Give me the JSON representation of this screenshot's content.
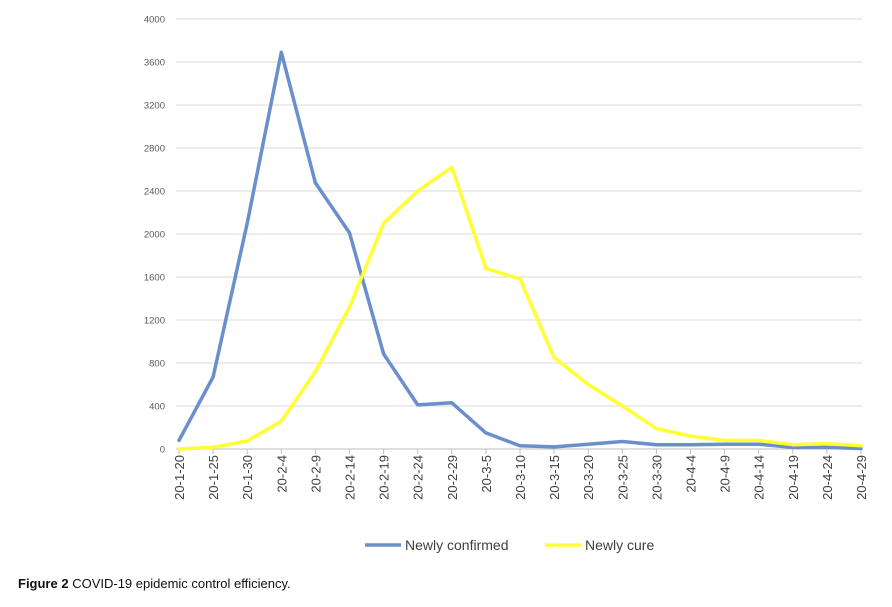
{
  "chart_data": {
    "type": "line",
    "title": "",
    "xlabel": "",
    "ylabel": "",
    "ylim": [
      0,
      4000
    ],
    "yticks": [
      0,
      400,
      800,
      1200,
      1600,
      2000,
      2400,
      2800,
      3200,
      3600,
      4000
    ],
    "grid": true,
    "legend_placement": "bottom",
    "categories": [
      "20-1-20",
      "20-1-25",
      "20-1-30",
      "20-2-4",
      "20-2-9",
      "20-2-14",
      "20-2-19",
      "20-2-24",
      "20-2-29",
      "20-3-5",
      "20-3-10",
      "20-3-15",
      "20-3-20",
      "20-3-25",
      "20-3-30",
      "20-4-4",
      "20-4-9",
      "20-4-14",
      "20-4-19",
      "20-4-24",
      "20-4-29"
    ],
    "series": [
      {
        "name": "Newly confirmed",
        "color": "#6a8fcc",
        "values": [
          80,
          670,
          2100,
          3690,
          2475,
          2010,
          885,
          410,
          430,
          150,
          30,
          20,
          45,
          70,
          40,
          40,
          45,
          45,
          15,
          15,
          5
        ]
      },
      {
        "name": "Newly cure",
        "color": "#ffff33",
        "values": [
          0,
          15,
          75,
          260,
          720,
          1320,
          2100,
          2400,
          2620,
          1680,
          1580,
          850,
          600,
          400,
          190,
          120,
          80,
          80,
          40,
          50,
          30
        ]
      }
    ]
  },
  "caption": {
    "label": "Figure 2",
    "text": " COVID-19 epidemic control efficiency."
  }
}
